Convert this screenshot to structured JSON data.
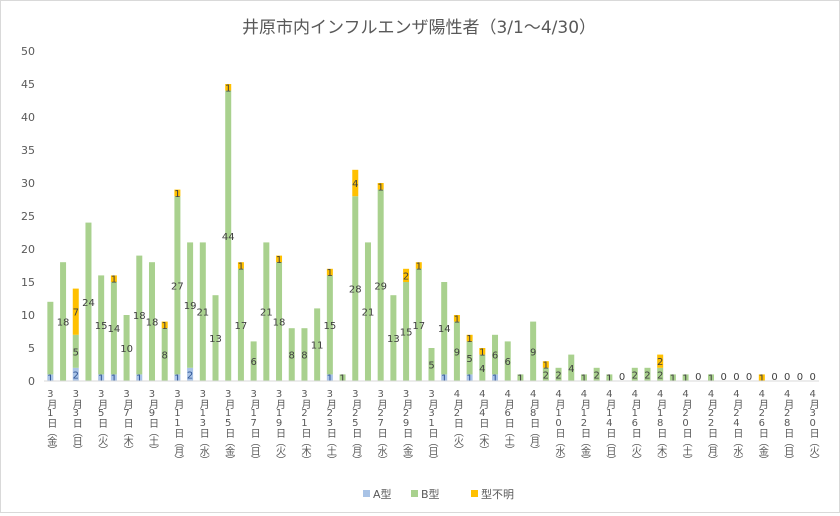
{
  "chart_data": {
    "type": "bar",
    "stacked": true,
    "title": "井原市内インフルエンザ陽性者（3/1～4/30）",
    "xlabel": "",
    "ylabel": "",
    "ylim": [
      0,
      50
    ],
    "yticks": [
      0,
      5,
      10,
      15,
      20,
      25,
      30,
      35,
      40,
      45,
      50
    ],
    "grid": false,
    "legend_position": "bottom",
    "categories": [
      "3/1",
      "3/2",
      "3/3",
      "3/4",
      "3/5",
      "3/6",
      "3/7",
      "3/8",
      "3/9",
      "3/10",
      "3/11",
      "3/12",
      "3/13",
      "3/14",
      "3/15",
      "3/16",
      "3/17",
      "3/18",
      "3/19",
      "3/20",
      "3/21",
      "3/22",
      "3/23",
      "3/24",
      "3/25",
      "3/26",
      "3/27",
      "3/28",
      "3/29",
      "3/30",
      "3/31",
      "4/1",
      "4/2",
      "4/3",
      "4/4",
      "4/5",
      "4/6",
      "4/7",
      "4/8",
      "4/9",
      "4/10",
      "4/11",
      "4/12",
      "4/13",
      "4/14",
      "4/15",
      "4/16",
      "4/17",
      "4/18",
      "4/19",
      "4/20",
      "4/21",
      "4/22",
      "4/23",
      "4/24",
      "4/25",
      "4/26",
      "4/27",
      "4/28",
      "4/29",
      "4/30"
    ],
    "tick_labels": [
      {
        "idx": 0,
        "text": "3月1日（金）"
      },
      {
        "idx": 2,
        "text": "3月3日（日）"
      },
      {
        "idx": 4,
        "text": "3月5日（火）"
      },
      {
        "idx": 6,
        "text": "3月7日（木）"
      },
      {
        "idx": 8,
        "text": "3月9日（土）"
      },
      {
        "idx": 10,
        "text": "3月11日（月）"
      },
      {
        "idx": 12,
        "text": "3月13日（水）"
      },
      {
        "idx": 14,
        "text": "3月15日（金）"
      },
      {
        "idx": 16,
        "text": "3月17日（日）"
      },
      {
        "idx": 18,
        "text": "3月19日（火）"
      },
      {
        "idx": 20,
        "text": "3月21日（木）"
      },
      {
        "idx": 22,
        "text": "3月23日（土）"
      },
      {
        "idx": 24,
        "text": "3月25日（月）"
      },
      {
        "idx": 26,
        "text": "3月27日（水）"
      },
      {
        "idx": 28,
        "text": "3月29日（金）"
      },
      {
        "idx": 30,
        "text": "3月31日（日）"
      },
      {
        "idx": 32,
        "text": "4月2日（火）"
      },
      {
        "idx": 34,
        "text": "4月4日（木）"
      },
      {
        "idx": 36,
        "text": "4月6日（土）"
      },
      {
        "idx": 38,
        "text": "4月8日（月）"
      },
      {
        "idx": 40,
        "text": "4月10日（水）"
      },
      {
        "idx": 42,
        "text": "4月12日（金）"
      },
      {
        "idx": 44,
        "text": "4月14日（日）"
      },
      {
        "idx": 46,
        "text": "4月16日（火）"
      },
      {
        "idx": 48,
        "text": "4月18日（木）"
      },
      {
        "idx": 50,
        "text": "4月20日（土）"
      },
      {
        "idx": 52,
        "text": "4月22日（月）"
      },
      {
        "idx": 54,
        "text": "4月24日（水）"
      },
      {
        "idx": 56,
        "text": "4月26日（金）"
      },
      {
        "idx": 58,
        "text": "4月28日（日）"
      },
      {
        "idx": 60,
        "text": "4月30日（火）"
      }
    ],
    "series": [
      {
        "name": "A型",
        "color": "#a9c3e6",
        "values": [
          1,
          0,
          2,
          0,
          1,
          1,
          0,
          1,
          0,
          0,
          1,
          2,
          0,
          0,
          0,
          0,
          0,
          0,
          0,
          0,
          0,
          0,
          1,
          0,
          0,
          0,
          0,
          0,
          0,
          0,
          0,
          1,
          0,
          1,
          0,
          1,
          0,
          0,
          0,
          0,
          0,
          0,
          0,
          0,
          0,
          0,
          0,
          0,
          0,
          0,
          0,
          0,
          0,
          0,
          0,
          0,
          0,
          0,
          0,
          0,
          0
        ]
      },
      {
        "name": "B型",
        "color": "#a9d18e",
        "values": [
          11,
          18,
          5,
          24,
          15,
          14,
          10,
          18,
          18,
          8,
          27,
          19,
          21,
          13,
          44,
          17,
          6,
          21,
          18,
          8,
          8,
          11,
          15,
          1,
          28,
          21,
          29,
          13,
          15,
          17,
          5,
          14,
          9,
          5,
          4,
          6,
          6,
          1,
          9,
          2,
          2,
          4,
          1,
          2,
          1,
          0,
          2,
          2,
          2,
          1,
          1,
          0,
          1,
          0,
          0,
          0,
          0,
          0,
          0,
          0,
          0
        ]
      },
      {
        "name": "型不明",
        "color": "#ffc000",
        "values": [
          0,
          0,
          7,
          0,
          0,
          1,
          0,
          0,
          0,
          1,
          1,
          0,
          0,
          0,
          1,
          1,
          0,
          0,
          1,
          0,
          0,
          0,
          1,
          0,
          4,
          0,
          1,
          0,
          2,
          1,
          0,
          0,
          1,
          1,
          1,
          0,
          0,
          0,
          0,
          1,
          0,
          0,
          0,
          0,
          0,
          0,
          0,
          0,
          2,
          0,
          0,
          0,
          0,
          0,
          0,
          0,
          1,
          0,
          0,
          0,
          0
        ]
      }
    ],
    "data_labels": {
      "A型": [
        1,
        null,
        2,
        null,
        1,
        1,
        null,
        1,
        null,
        null,
        1,
        2,
        null,
        null,
        null,
        null,
        null,
        null,
        null,
        null,
        null,
        null,
        1,
        null,
        null,
        null,
        null,
        null,
        null,
        null,
        null,
        1,
        null,
        1,
        null,
        1,
        null,
        null,
        null,
        null,
        null,
        null,
        null,
        null,
        null,
        null,
        null,
        null,
        null,
        null,
        null,
        null,
        null,
        null,
        null,
        null,
        null,
        null,
        null,
        null,
        null
      ],
      "B型": [
        null,
        18,
        5,
        24,
        15,
        14,
        10,
        18,
        18,
        8,
        27,
        19,
        21,
        13,
        44,
        17,
        6,
        21,
        18,
        8,
        8,
        11,
        15,
        1,
        28,
        21,
        29,
        13,
        15,
        17,
        5,
        14,
        9,
        5,
        4,
        6,
        6,
        1,
        9,
        2,
        2,
        4,
        1,
        2,
        1,
        0,
        2,
        2,
        2,
        1,
        1,
        0,
        1,
        0,
        0,
        0,
        null,
        0,
        0,
        0,
        0
      ],
      "型不明": [
        null,
        null,
        7,
        null,
        null,
        1,
        null,
        null,
        null,
        1,
        1,
        null,
        null,
        null,
        1,
        1,
        null,
        null,
        1,
        null,
        null,
        null,
        1,
        null,
        4,
        null,
        1,
        null,
        2,
        1,
        null,
        null,
        1,
        1,
        1,
        null,
        null,
        null,
        null,
        1,
        null,
        null,
        null,
        null,
        null,
        null,
        null,
        null,
        2,
        null,
        null,
        null,
        null,
        null,
        null,
        null,
        1,
        null,
        null,
        null,
        null
      ]
    }
  }
}
